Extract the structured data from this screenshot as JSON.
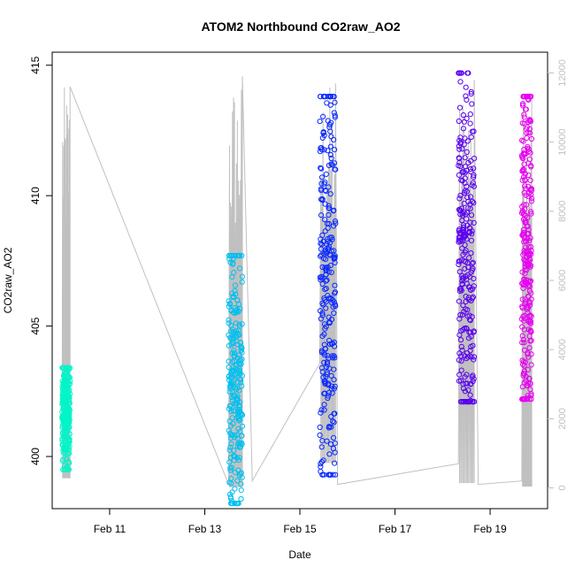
{
  "chart_data": {
    "type": "scatter",
    "title": "ATOM2 Northbound CO2raw_AO2",
    "xlabel": "Date",
    "ylabel": "CO2raw_AO2",
    "ylim": [
      398,
      415.5
    ],
    "y_ticks": [
      400,
      405,
      410,
      415
    ],
    "y2lim": [
      -600,
      12600
    ],
    "y2_ticks": [
      0,
      2000,
      4000,
      6000,
      8000,
      10000,
      12000
    ],
    "y2_tick_color": "#c0c0c0",
    "xlim": [
      "2020-02-09 19:00",
      "2020-02-20 05:00"
    ],
    "x_ticks": [
      {
        "date": "2020-02-11",
        "label": "Feb 11"
      },
      {
        "date": "2020-02-13",
        "label": "Feb 13"
      },
      {
        "date": "2020-02-15",
        "label": "Feb 15"
      },
      {
        "date": "2020-02-17",
        "label": "Feb 17"
      },
      {
        "date": "2020-02-19",
        "label": "Feb 19"
      }
    ],
    "grid": false,
    "secondary_line_color": "#c0c0c0",
    "series": [
      {
        "start": "2020-02-10 00:00",
        "end": "2020-02-10 04:00",
        "y_min": 399.5,
        "y_max": 403.4,
        "y_center": 401.7,
        "color": "#00f5c8"
      },
      {
        "start": "2020-02-13 12:00",
        "end": "2020-02-13 19:00",
        "y_min": 398.2,
        "y_max": 407.7,
        "y_center": 402.7,
        "color": "#00c0f0"
      },
      {
        "start": "2020-02-15 10:00",
        "end": "2020-02-15 18:00",
        "y_min": 399.3,
        "y_max": 413.8,
        "y_center": 406.5,
        "color": "#0a28ff"
      },
      {
        "start": "2020-02-18 08:00",
        "end": "2020-02-18 16:00",
        "y_min": 402.1,
        "y_max": 414.7,
        "y_center": 407.7,
        "color": "#5a00f0"
      },
      {
        "start": "2020-02-19 16:00",
        "end": "2020-02-19 21:00",
        "y_min": 402.2,
        "y_max": 413.8,
        "y_center": 408.0,
        "color": "#e600f0"
      }
    ],
    "secondary_series": [
      {
        "x": "2020-02-10 00:00",
        "y": 1400
      },
      {
        "x": "2020-02-10 04:00",
        "y": 11600
      },
      {
        "x": "2020-02-13 12:00",
        "y": 100
      },
      {
        "x": "2020-02-13 19:00",
        "y": 11900
      },
      {
        "x": "2020-02-14 00:00",
        "y": 200
      },
      {
        "x": "2020-02-15 10:00",
        "y": 3600
      },
      {
        "x": "2020-02-15 18:00",
        "y": 11700
      },
      {
        "x": "2020-02-15 19:00",
        "y": 100
      },
      {
        "x": "2020-02-18 08:00",
        "y": 700
      },
      {
        "x": "2020-02-18 16:00",
        "y": 11800
      },
      {
        "x": "2020-02-18 18:00",
        "y": 100
      },
      {
        "x": "2020-02-19 16:00",
        "y": 200
      },
      {
        "x": "2020-02-19 21:00",
        "y": 11400
      }
    ]
  }
}
